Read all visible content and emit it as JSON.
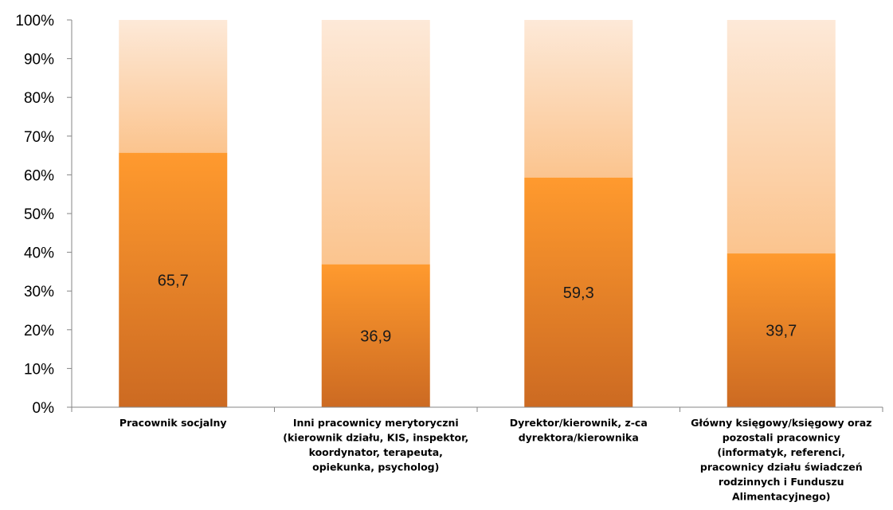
{
  "chart_data": {
    "type": "bar",
    "stacked": "percent",
    "categories": [
      "Pracownik socjalny",
      "Inni pracownicy merytoryczni (kierownik działu, KIS, inspektor, koordynator, terapeuta, opiekunka, psycholog)",
      "Dyrektor/kierownik, z-ca dyrektora/kierownika",
      "Główny księgowy/księgowy oraz pozostali pracownicy (informatyk, referenci, pracownicy działu świadczeń rodzinnych i Funduszu Alimentacyjnego)"
    ],
    "category_lines": [
      [
        "Pracownik socjalny"
      ],
      [
        "Inni pracownicy merytoryczni",
        "(kierownik działu, KIS, inspektor,",
        "koordynator, terapeuta,",
        "opiekunka, psycholog)"
      ],
      [
        "Dyrektor/kierownik, z-ca",
        "dyrektora/kierownika"
      ],
      [
        "Główny księgowy/księgowy oraz",
        "pozostali pracownicy",
        "(informatyk, referenci,",
        "pracownicy działu świadczeń",
        "rodzinnych i Funduszu",
        "Alimentacyjnego)"
      ]
    ],
    "series": [
      {
        "values": [
          65.7,
          36.9,
          59.3,
          39.7
        ],
        "labels": [
          "65,7",
          "36,9",
          "59,3",
          "39,7"
        ],
        "color_top": "#ff9a2e",
        "color_bottom": "#cc6a22"
      },
      {
        "values": [
          34.3,
          63.1,
          40.7,
          60.3
        ],
        "color_top": "#fde9d8",
        "color_bottom": "#fbc48e"
      }
    ],
    "ylim": [
      0,
      100
    ],
    "yticks": [
      0,
      10,
      20,
      30,
      40,
      50,
      60,
      70,
      80,
      90,
      100
    ],
    "ytick_labels": [
      "0%",
      "10%",
      "20%",
      "30%",
      "40%",
      "50%",
      "60%",
      "70%",
      "80%",
      "90%",
      "100%"
    ],
    "grid": false,
    "legend": "none"
  }
}
